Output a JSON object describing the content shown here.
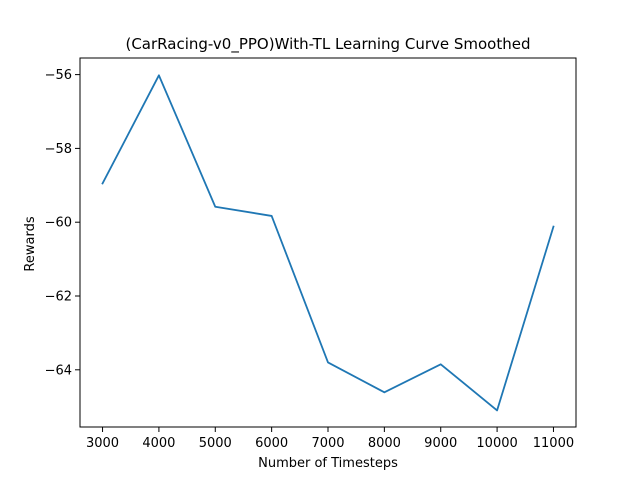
{
  "chart_data": {
    "type": "line",
    "title": "(CarRacing-v0_PPO)With-TL Learning Curve Smoothed",
    "xlabel": "Number of Timesteps",
    "ylabel": "Rewards",
    "x": [
      3000,
      4000,
      5000,
      6000,
      7000,
      8000,
      9000,
      10000,
      11000
    ],
    "series": [
      {
        "values": [
          -58.95,
          -56.02,
          -59.58,
          -59.83,
          -63.8,
          -64.61,
          -63.85,
          -65.1,
          -60.12
        ],
        "color": "#1f77b4"
      }
    ],
    "xlim": [
      2600,
      11400
    ],
    "ylim": [
      -65.55,
      -55.55
    ],
    "xticks": [
      3000,
      4000,
      5000,
      6000,
      7000,
      8000,
      9000,
      10000,
      11000
    ],
    "yticks": [
      -56,
      -58,
      -60,
      -62,
      -64
    ],
    "grid": false,
    "legend": false
  }
}
